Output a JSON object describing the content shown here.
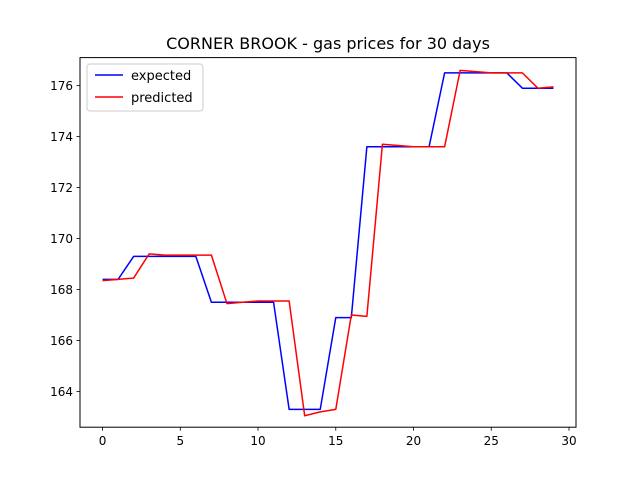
{
  "chart_data": {
    "type": "line",
    "title": "CORNER BROOK - gas prices for 30 days",
    "xlabel": "",
    "ylabel": "",
    "xlim": [
      -1.45,
      30.45
    ],
    "ylim": [
      162.6,
      177.1
    ],
    "xticks": [
      0,
      5,
      10,
      15,
      20,
      25,
      30
    ],
    "yticks": [
      164,
      166,
      168,
      170,
      172,
      174,
      176
    ],
    "x": [
      0,
      1,
      2,
      3,
      4,
      5,
      6,
      7,
      8,
      9,
      10,
      11,
      12,
      13,
      14,
      15,
      16,
      17,
      18,
      19,
      20,
      21,
      22,
      23,
      24,
      25,
      26,
      27,
      28,
      29
    ],
    "legend_position": "upper left",
    "grid": false,
    "series": [
      {
        "name": "expected",
        "color": "#0000ff",
        "values": [
          168.4,
          168.4,
          169.3,
          169.3,
          169.3,
          169.3,
          169.3,
          167.5,
          167.5,
          167.5,
          167.5,
          167.5,
          163.3,
          163.3,
          163.3,
          166.9,
          166.9,
          173.6,
          173.6,
          173.6,
          173.6,
          173.6,
          176.5,
          176.5,
          176.5,
          176.5,
          176.5,
          175.9,
          175.9,
          175.9
        ]
      },
      {
        "name": "predicted",
        "color": "#ff0000",
        "values": [
          168.35,
          168.4,
          168.45,
          169.4,
          169.35,
          169.35,
          169.35,
          169.35,
          167.45,
          167.5,
          167.55,
          167.55,
          167.55,
          163.05,
          163.2,
          163.3,
          167.0,
          166.95,
          173.7,
          173.65,
          173.6,
          173.6,
          173.6,
          176.6,
          176.55,
          176.5,
          176.5,
          176.5,
          175.9,
          175.95
        ]
      }
    ]
  }
}
